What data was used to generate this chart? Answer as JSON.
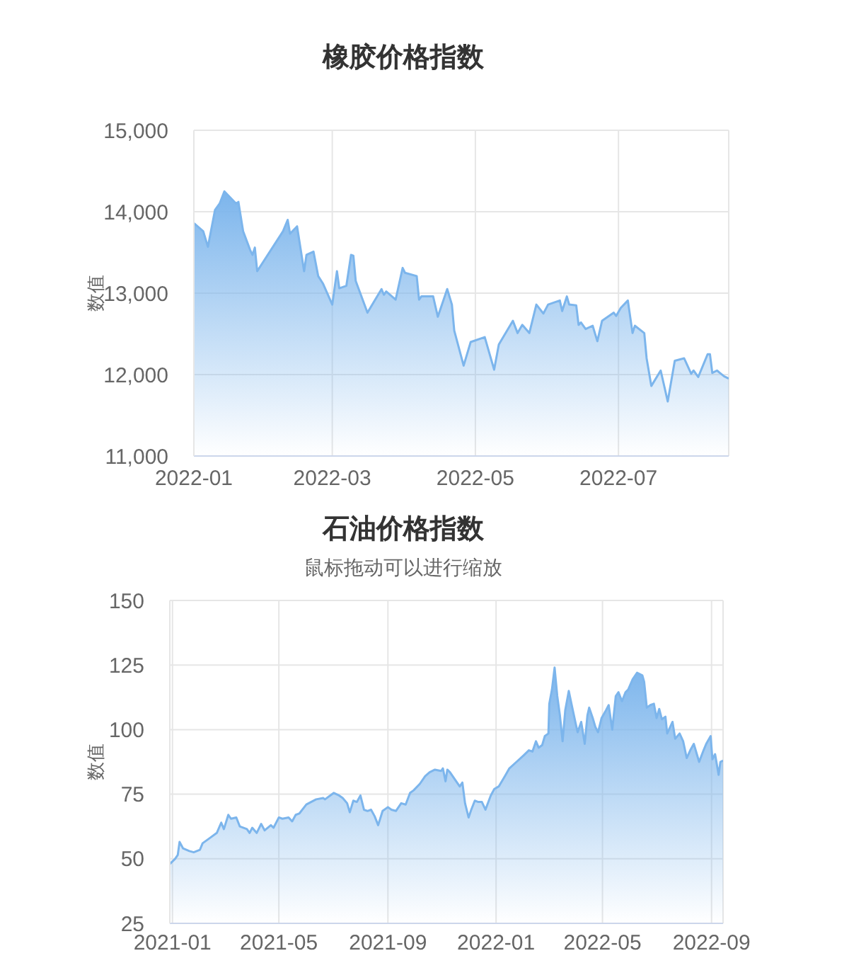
{
  "chart_data": [
    {
      "type": "area",
      "title": "橡胶价格指数",
      "ylabel": "数值",
      "color": "#7cb5ec",
      "x": [
        "2022-01-01",
        "2022-01-05",
        "2022-01-07",
        "2022-01-10",
        "2022-01-12",
        "2022-01-14",
        "2022-01-19",
        "2022-01-20",
        "2022-01-22",
        "2022-01-25",
        "2022-01-26",
        "2022-01-27",
        "2022-01-28",
        "2022-02-08",
        "2022-02-10",
        "2022-02-11",
        "2022-02-14",
        "2022-02-17",
        "2022-02-18",
        "2022-02-21",
        "2022-02-23",
        "2022-02-25",
        "2022-03-01",
        "2022-03-03",
        "2022-03-04",
        "2022-03-07",
        "2022-03-09",
        "2022-03-10",
        "2022-03-11",
        "2022-03-16",
        "2022-03-22",
        "2022-03-23",
        "2022-03-24",
        "2022-03-28",
        "2022-03-31",
        "2022-04-01",
        "2022-04-06",
        "2022-04-07",
        "2022-04-08",
        "2022-04-13",
        "2022-04-15",
        "2022-04-19",
        "2022-04-21",
        "2022-04-22",
        "2022-04-26",
        "2022-04-29",
        "2022-05-05",
        "2022-05-09",
        "2022-05-11",
        "2022-05-17",
        "2022-05-19",
        "2022-05-21",
        "2022-05-24",
        "2022-05-27",
        "2022-05-30",
        "2022-06-01",
        "2022-06-06",
        "2022-06-07",
        "2022-06-09",
        "2022-06-10",
        "2022-06-13",
        "2022-06-14",
        "2022-06-15",
        "2022-06-17",
        "2022-06-20",
        "2022-06-22",
        "2022-06-24",
        "2022-06-29",
        "2022-06-30",
        "2022-07-02",
        "2022-07-05",
        "2022-07-07",
        "2022-07-08",
        "2022-07-12",
        "2022-07-13",
        "2022-07-15",
        "2022-07-19",
        "2022-07-22",
        "2022-07-25",
        "2022-07-29",
        "2022-08-01",
        "2022-08-02",
        "2022-08-04",
        "2022-08-08",
        "2022-08-09",
        "2022-08-10",
        "2022-08-12",
        "2022-08-15",
        "2022-08-17"
      ],
      "values": [
        13860,
        13760,
        13570,
        14020,
        14100,
        14250,
        14100,
        14120,
        13760,
        13530,
        13470,
        13560,
        13270,
        13760,
        13900,
        13730,
        13820,
        13270,
        13470,
        13510,
        13210,
        13120,
        12860,
        13270,
        13060,
        13090,
        13470,
        13460,
        13150,
        12760,
        13050,
        12980,
        13020,
        12920,
        13310,
        13250,
        13210,
        12920,
        12960,
        12960,
        12710,
        13050,
        12860,
        12540,
        12110,
        12400,
        12460,
        12060,
        12370,
        12660,
        12510,
        12610,
        12510,
        12860,
        12750,
        12860,
        12910,
        12780,
        12960,
        12860,
        12850,
        12610,
        12640,
        12560,
        12600,
        12410,
        12660,
        12760,
        12720,
        12820,
        12910,
        12510,
        12600,
        12510,
        12200,
        11860,
        12050,
        11670,
        12170,
        12200,
        12010,
        12050,
        11970,
        12250,
        12250,
        12020,
        12050,
        11980,
        11950
      ],
      "xlim": [
        "2022-01-01",
        "2022-08-17"
      ],
      "xticks": [
        "2022-01",
        "2022-03",
        "2022-05",
        "2022-07"
      ],
      "ylim": [
        11000,
        15000
      ],
      "yticks": [
        {
          "value": 11000,
          "label": "11,000"
        },
        {
          "value": 12000,
          "label": "12,000"
        },
        {
          "value": 13000,
          "label": "13,000"
        },
        {
          "value": 14000,
          "label": "14,000"
        },
        {
          "value": 15000,
          "label": "15,000"
        }
      ],
      "grid": true
    },
    {
      "type": "area",
      "title": "石油价格指数",
      "subtitle": "鼠标拖动可以进行缩放",
      "ylabel": "数值",
      "color": "#7cb5ec",
      "x": [
        "2020-12-29",
        "2021-01-04",
        "2021-01-07",
        "2021-01-09",
        "2021-01-13",
        "2021-01-20",
        "2021-01-25",
        "2021-02-01",
        "2021-02-04",
        "2021-02-12",
        "2021-02-20",
        "2021-02-25",
        "2021-02-28",
        "2021-03-05",
        "2021-03-08",
        "2021-03-14",
        "2021-03-18",
        "2021-03-26",
        "2021-03-29",
        "2021-04-01",
        "2021-04-06",
        "2021-04-11",
        "2021-04-15",
        "2021-04-22",
        "2021-04-25",
        "2021-05-01",
        "2021-05-05",
        "2021-05-12",
        "2021-05-16",
        "2021-05-20",
        "2021-05-24",
        "2021-06-01",
        "2021-06-12",
        "2021-06-20",
        "2021-06-22",
        "2021-07-02",
        "2021-07-08",
        "2021-07-12",
        "2021-07-17",
        "2021-07-20",
        "2021-07-24",
        "2021-07-28",
        "2021-08-01",
        "2021-08-05",
        "2021-08-09",
        "2021-08-13",
        "2021-08-17",
        "2021-08-21",
        "2021-08-26",
        "2021-09-01",
        "2021-09-05",
        "2021-09-10",
        "2021-09-16",
        "2021-09-21",
        "2021-09-26",
        "2021-09-30",
        "2021-10-07",
        "2021-10-13",
        "2021-10-18",
        "2021-10-24",
        "2021-10-31",
        "2021-11-02",
        "2021-11-05",
        "2021-11-07",
        "2021-11-10",
        "2021-11-17",
        "2021-11-21",
        "2021-11-24",
        "2021-11-27",
        "2021-12-01",
        "2021-12-04",
        "2021-12-08",
        "2021-12-12",
        "2021-12-16",
        "2021-12-20",
        "2021-12-26",
        "2021-12-30",
        "2022-01-04",
        "2022-01-11",
        "2022-01-16",
        "2022-01-24",
        "2022-02-01",
        "2022-02-07",
        "2022-02-11",
        "2022-02-15",
        "2022-02-18",
        "2022-02-22",
        "2022-02-25",
        "2022-03-01",
        "2022-03-02",
        "2022-03-05",
        "2022-03-08",
        "2022-03-11",
        "2022-03-14",
        "2022-03-17",
        "2022-03-20",
        "2022-03-24",
        "2022-03-27",
        "2022-04-01",
        "2022-04-03",
        "2022-04-07",
        "2022-04-11",
        "2022-04-14",
        "2022-04-16",
        "2022-04-20",
        "2022-04-23",
        "2022-04-26",
        "2022-04-30",
        "2022-05-05",
        "2022-05-08",
        "2022-05-12",
        "2022-05-16",
        "2022-05-19",
        "2022-05-23",
        "2022-05-27",
        "2022-05-30",
        "2022-06-04",
        "2022-06-09",
        "2022-06-15",
        "2022-06-17",
        "2022-06-20",
        "2022-06-24",
        "2022-06-28",
        "2022-07-01",
        "2022-07-04",
        "2022-07-07",
        "2022-07-11",
        "2022-07-13",
        "2022-07-19",
        "2022-07-22",
        "2022-07-27",
        "2022-07-31",
        "2022-08-04",
        "2022-08-08",
        "2022-08-12",
        "2022-08-18",
        "2022-08-23",
        "2022-08-26",
        "2022-08-31",
        "2022-09-02",
        "2022-09-05",
        "2022-09-09",
        "2022-09-11",
        "2022-09-14"
      ],
      "values": [
        48,
        50,
        51.5,
        56.5,
        54,
        53,
        52.5,
        53.5,
        56,
        58,
        60,
        64,
        61.5,
        67,
        65.5,
        66,
        62.5,
        61.5,
        60,
        62,
        60,
        63.5,
        61,
        63,
        62,
        66,
        65.5,
        66,
        64.5,
        67,
        67.5,
        71,
        73,
        73.5,
        73,
        75.5,
        74.5,
        73.5,
        71.5,
        68,
        72.5,
        72,
        74.5,
        69,
        68.5,
        69,
        66.5,
        63,
        68.5,
        70,
        69,
        68.5,
        71.5,
        71,
        75.5,
        76.5,
        79,
        82,
        83.5,
        84.5,
        84,
        85,
        80,
        84.5,
        83.5,
        80,
        78,
        79.5,
        71.5,
        66,
        69,
        72.5,
        72,
        72,
        69,
        74.5,
        77,
        78,
        82,
        85,
        87.5,
        90,
        92,
        91.5,
        95.5,
        93,
        94,
        97.5,
        98.5,
        110,
        115.5,
        124,
        113,
        105.5,
        95.5,
        107.5,
        115,
        110,
        102,
        99,
        103,
        94.5,
        105.5,
        108.5,
        104.5,
        101,
        99,
        104.5,
        107.5,
        109.5,
        100,
        113,
        114.5,
        111,
        114.5,
        115.5,
        119.5,
        122,
        121,
        118.5,
        108.5,
        109.5,
        110,
        104.5,
        108,
        104,
        105,
        98.5,
        103,
        96.5,
        98.5,
        95.5,
        89,
        92,
        94.5,
        87.5,
        92,
        94.5,
        97.5,
        88.5,
        90.5,
        82.5,
        87.5,
        88
      ],
      "xlim": [
        "2020-12-29",
        "2022-09-14"
      ],
      "xticks": [
        "2021-01",
        "2021-05",
        "2021-09",
        "2022-01",
        "2022-05",
        "2022-09"
      ],
      "ylim": [
        25,
        150
      ],
      "yticks": [
        25,
        50,
        75,
        100,
        125,
        150
      ],
      "grid": true
    }
  ]
}
